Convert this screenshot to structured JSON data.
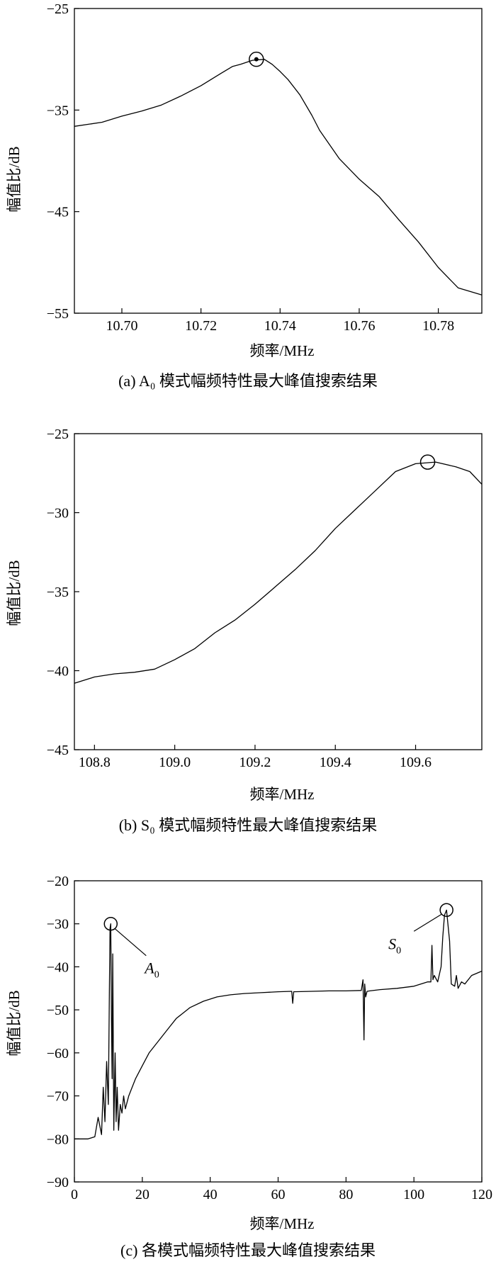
{
  "chart_data": [
    {
      "type": "line",
      "caption": "(a) A₀ 模式幅频特性最大峰值搜索结果",
      "xlabel": "频率/MHz",
      "ylabel": "幅值比/dB",
      "xlim": [
        10.688,
        10.791
      ],
      "ylim": [
        -55,
        -25
      ],
      "xticks": [
        "10.70",
        "10.72",
        "10.74",
        "10.76",
        "10.78"
      ],
      "yticks": [
        "-25",
        "-35",
        "-45",
        "-55"
      ],
      "grid": false,
      "peak": {
        "x": 10.734,
        "y": -30.0,
        "label": ""
      },
      "series": [
        {
          "x": [
            10.688,
            10.695,
            10.7,
            10.705,
            10.71,
            10.715,
            10.72,
            10.725,
            10.728,
            10.73,
            10.733,
            10.736,
            10.738,
            10.74,
            10.742,
            10.745,
            10.748,
            10.75,
            10.755,
            10.76,
            10.765,
            10.77,
            10.775,
            10.78,
            10.785,
            10.791
          ],
          "y": [
            -36.6,
            -36.2,
            -35.6,
            -35.1,
            -34.5,
            -33.6,
            -32.6,
            -31.4,
            -30.7,
            -30.5,
            -30.1,
            -30.0,
            -30.5,
            -31.2,
            -32.0,
            -33.5,
            -35.5,
            -37.0,
            -39.8,
            -41.8,
            -43.5,
            -45.8,
            -48.0,
            -50.5,
            -52.5,
            -53.2
          ]
        }
      ]
    },
    {
      "type": "line",
      "caption": "(b) S₀ 模式幅频特性最大峰值搜索结果",
      "xlabel": "频率/MHz",
      "ylabel": "幅值比/dB",
      "xlim": [
        108.75,
        109.765
      ],
      "ylim": [
        -45,
        -25
      ],
      "xticks": [
        "108.8",
        "109.0",
        "109.2",
        "109.4",
        "109.6"
      ],
      "yticks": [
        "-25",
        "-30",
        "-35",
        "-40",
        "-45"
      ],
      "grid": false,
      "peak": {
        "x": 109.63,
        "y": -26.8,
        "label": ""
      },
      "series": [
        {
          "x": [
            108.75,
            108.8,
            108.85,
            108.9,
            108.95,
            109.0,
            109.05,
            109.1,
            109.15,
            109.2,
            109.25,
            109.3,
            109.35,
            109.4,
            109.45,
            109.5,
            109.55,
            109.6,
            109.65,
            109.7,
            109.735,
            109.765
          ],
          "y": [
            -40.8,
            -40.4,
            -40.2,
            -40.1,
            -39.9,
            -39.3,
            -38.6,
            -37.6,
            -36.8,
            -35.8,
            -34.7,
            -33.6,
            -32.4,
            -31.0,
            -29.8,
            -28.6,
            -27.4,
            -26.9,
            -26.8,
            -27.1,
            -27.4,
            -28.2
          ]
        }
      ]
    },
    {
      "type": "line",
      "caption": "(c) 各模式幅频特性最大峰值搜索结果",
      "xlabel": "频率/MHz",
      "ylabel": "幅值比/dB",
      "xlim": [
        0,
        120
      ],
      "ylim": [
        -90,
        -20
      ],
      "xticks": [
        "0",
        "20",
        "40",
        "60",
        "80",
        "100",
        "120"
      ],
      "yticks": [
        "-20",
        "-30",
        "-40",
        "-50",
        "-60",
        "-70",
        "-80",
        "-90"
      ],
      "grid": false,
      "annotations": [
        {
          "label": "A",
          "sub": "0",
          "x": 10.7,
          "y": -30.0
        },
        {
          "label": "S",
          "sub": "0",
          "x": 109.6,
          "y": -26.8
        }
      ],
      "series": [
        {
          "x": [
            0,
            4,
            6,
            7,
            8,
            8.5,
            9,
            9.5,
            10,
            10.3,
            10.5,
            10.7,
            10.9,
            11.1,
            11.3,
            11.6,
            12,
            12.3,
            12.6,
            13,
            13.5,
            14,
            14.5,
            15,
            16,
            17,
            18,
            20,
            22,
            25,
            28,
            30,
            34,
            38,
            42,
            46,
            50,
            55,
            60,
            64,
            64.3,
            64.6,
            70,
            75,
            80,
            84.5,
            85,
            85.3,
            85.5,
            85.8,
            86.2,
            87,
            90,
            95,
            100,
            102,
            104,
            105,
            105.3,
            105.6,
            106,
            107,
            108,
            108.5,
            109,
            109.6,
            110,
            110.5,
            111,
            112,
            112.5,
            113,
            114,
            115,
            117,
            120
          ],
          "y": [
            -80,
            -80,
            -79.5,
            -75,
            -79,
            -68,
            -76,
            -62,
            -72,
            -45,
            -31,
            -30,
            -50,
            -66,
            -37,
            -78,
            -60,
            -76,
            -68,
            -78,
            -72,
            -74,
            -70,
            -73,
            -70,
            -68,
            -66,
            -63,
            -60,
            -57,
            -54,
            -52,
            -49.5,
            -48,
            -47,
            -46.5,
            -46.2,
            -46,
            -45.8,
            -45.7,
            -48.5,
            -45.8,
            -45.7,
            -45.6,
            -45.6,
            -45.5,
            -43,
            -57,
            -44,
            -47,
            -45.7,
            -45.6,
            -45.3,
            -45,
            -44.5,
            -44,
            -43.5,
            -43.5,
            -35,
            -43,
            -42,
            -43.5,
            -40,
            -33,
            -28,
            -26.8,
            -30,
            -34,
            -44,
            -44.5,
            -42,
            -45,
            -43.5,
            -44,
            -42,
            -41
          ]
        }
      ]
    }
  ]
}
